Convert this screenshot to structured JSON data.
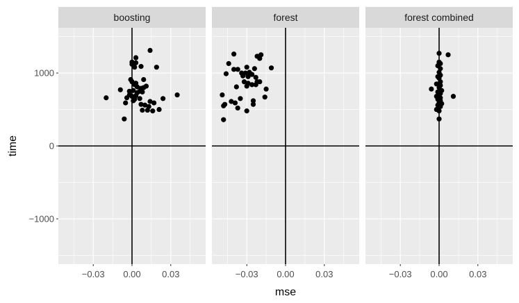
{
  "chart_data": {
    "type": "scatter",
    "xlabel": "mse",
    "ylabel": "time",
    "xlim": [
      -0.057,
      0.057
    ],
    "ylim": [
      -1620,
      1620
    ],
    "x_ticks": [
      -0.03,
      0.0,
      0.03
    ],
    "x_tick_labels": [
      "−0.03",
      "0.00",
      "0.03"
    ],
    "y_ticks": [
      -1000,
      0,
      1000
    ],
    "y_tick_labels": [
      "−1000",
      "0",
      "1000"
    ],
    "grid": true,
    "reference_lines": {
      "x": 0,
      "y": 0
    },
    "colors": {
      "panel_bg": "#ebebeb",
      "strip_bg": "#d9d9d9",
      "grid": "#ffffff",
      "point": "#000000",
      "ref_line": "#000000"
    },
    "panels": [
      {
        "label": "boosting",
        "points": [
          {
            "x": -0.0,
            "y": 1150
          },
          {
            "x": 0.003,
            "y": 1210
          },
          {
            "x": 0.014,
            "y": 1310
          },
          {
            "x": 0.0,
            "y": 1120
          },
          {
            "x": 0.003,
            "y": 1140
          },
          {
            "x": 0.007,
            "y": 1090
          },
          {
            "x": 0.019,
            "y": 1080
          },
          {
            "x": 0.002,
            "y": 1080
          },
          {
            "x": -0.001,
            "y": 910
          },
          {
            "x": 0.0,
            "y": 880
          },
          {
            "x": 0.003,
            "y": 860
          },
          {
            "x": 0.009,
            "y": 910
          },
          {
            "x": 0.002,
            "y": 840
          },
          {
            "x": 0.004,
            "y": 810
          },
          {
            "x": 0.007,
            "y": 790
          },
          {
            "x": 0.011,
            "y": 820
          },
          {
            "x": 0.009,
            "y": 800
          },
          {
            "x": -0.009,
            "y": 770
          },
          {
            "x": -0.002,
            "y": 750
          },
          {
            "x": 0.001,
            "y": 760
          },
          {
            "x": 0.004,
            "y": 730
          },
          {
            "x": 0.006,
            "y": 750
          },
          {
            "x": 0.008,
            "y": 740
          },
          {
            "x": -0.002,
            "y": 700
          },
          {
            "x": 0.0,
            "y": 680
          },
          {
            "x": 0.003,
            "y": 690
          },
          {
            "x": -0.004,
            "y": 660
          },
          {
            "x": 0.002,
            "y": 640
          },
          {
            "x": 0.001,
            "y": 620
          },
          {
            "x": 0.006,
            "y": 650
          },
          {
            "x": 0.024,
            "y": 650
          },
          {
            "x": 0.035,
            "y": 700
          },
          {
            "x": -0.02,
            "y": 660
          },
          {
            "x": -0.005,
            "y": 590
          },
          {
            "x": 0.007,
            "y": 570
          },
          {
            "x": 0.01,
            "y": 560
          },
          {
            "x": 0.014,
            "y": 610
          },
          {
            "x": 0.017,
            "y": 590
          },
          {
            "x": 0.013,
            "y": 540
          },
          {
            "x": 0.008,
            "y": 490
          },
          {
            "x": 0.012,
            "y": 490
          },
          {
            "x": 0.016,
            "y": 480
          },
          {
            "x": 0.021,
            "y": 500
          },
          {
            "x": -0.006,
            "y": 370
          }
        ]
      },
      {
        "label": "forest",
        "points": [
          {
            "x": -0.04,
            "y": 1260
          },
          {
            "x": -0.022,
            "y": 1230
          },
          {
            "x": -0.019,
            "y": 1250
          },
          {
            "x": -0.02,
            "y": 1200
          },
          {
            "x": -0.044,
            "y": 1130
          },
          {
            "x": -0.011,
            "y": 1070
          },
          {
            "x": -0.04,
            "y": 1050
          },
          {
            "x": -0.037,
            "y": 1050
          },
          {
            "x": -0.03,
            "y": 1080
          },
          {
            "x": -0.024,
            "y": 1060
          },
          {
            "x": -0.046,
            "y": 990
          },
          {
            "x": -0.034,
            "y": 1000
          },
          {
            "x": -0.031,
            "y": 1000
          },
          {
            "x": -0.028,
            "y": 1010
          },
          {
            "x": -0.026,
            "y": 980
          },
          {
            "x": -0.033,
            "y": 960
          },
          {
            "x": -0.029,
            "y": 950
          },
          {
            "x": -0.023,
            "y": 940
          },
          {
            "x": -0.032,
            "y": 880
          },
          {
            "x": -0.029,
            "y": 860
          },
          {
            "x": -0.022,
            "y": 880
          },
          {
            "x": -0.02,
            "y": 880
          },
          {
            "x": -0.023,
            "y": 840
          },
          {
            "x": -0.03,
            "y": 820
          },
          {
            "x": -0.026,
            "y": 840
          },
          {
            "x": -0.038,
            "y": 810
          },
          {
            "x": -0.015,
            "y": 780
          },
          {
            "x": -0.049,
            "y": 700
          },
          {
            "x": -0.016,
            "y": 670
          },
          {
            "x": -0.035,
            "y": 650
          },
          {
            "x": -0.042,
            "y": 610
          },
          {
            "x": -0.039,
            "y": 590
          },
          {
            "x": -0.025,
            "y": 620
          },
          {
            "x": -0.047,
            "y": 570
          },
          {
            "x": -0.048,
            "y": 550
          },
          {
            "x": -0.037,
            "y": 520
          },
          {
            "x": -0.025,
            "y": 570
          },
          {
            "x": -0.03,
            "y": 480
          },
          {
            "x": -0.048,
            "y": 360
          }
        ]
      },
      {
        "label": "forest combined",
        "points": [
          {
            "x": 0.0,
            "y": 1270
          },
          {
            "x": 0.007,
            "y": 1250
          },
          {
            "x": 0.0,
            "y": 1150
          },
          {
            "x": 0.001,
            "y": 1130
          },
          {
            "x": -0.001,
            "y": 1100
          },
          {
            "x": 0.001,
            "y": 1060
          },
          {
            "x": 0.0,
            "y": 1010
          },
          {
            "x": 0.001,
            "y": 970
          },
          {
            "x": -0.001,
            "y": 950
          },
          {
            "x": 0.0,
            "y": 930
          },
          {
            "x": 0.001,
            "y": 880
          },
          {
            "x": -0.002,
            "y": 850
          },
          {
            "x": 0.001,
            "y": 830
          },
          {
            "x": 0.0,
            "y": 800
          },
          {
            "x": -0.006,
            "y": 780
          },
          {
            "x": 0.002,
            "y": 760
          },
          {
            "x": -0.001,
            "y": 740
          },
          {
            "x": 0.001,
            "y": 720
          },
          {
            "x": 0.0,
            "y": 700
          },
          {
            "x": -0.002,
            "y": 680
          },
          {
            "x": 0.011,
            "y": 680
          },
          {
            "x": 0.001,
            "y": 660
          },
          {
            "x": -0.001,
            "y": 640
          },
          {
            "x": 0.001,
            "y": 620
          },
          {
            "x": 0.0,
            "y": 600
          },
          {
            "x": 0.002,
            "y": 580
          },
          {
            "x": -0.001,
            "y": 560
          },
          {
            "x": 0.001,
            "y": 540
          },
          {
            "x": -0.002,
            "y": 500
          },
          {
            "x": 0.0,
            "y": 480
          },
          {
            "x": 0.0,
            "y": 370
          }
        ]
      }
    ]
  }
}
